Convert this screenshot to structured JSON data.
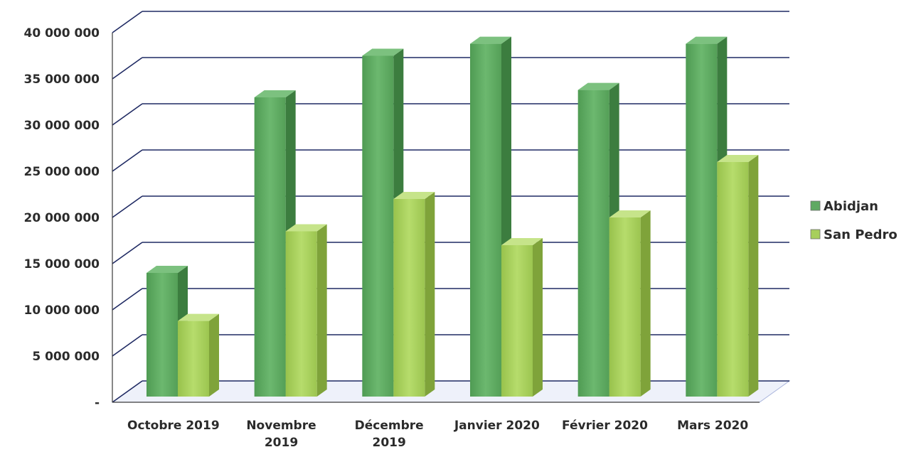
{
  "chart_data": {
    "type": "bar",
    "title": "",
    "xlabel": "",
    "ylabel": "",
    "categories": [
      [
        "Octobre 2019"
      ],
      [
        "Novembre",
        "2019"
      ],
      [
        "Décembre",
        "2019"
      ],
      [
        "Janvier 2020"
      ],
      [
        "Février 2020"
      ],
      [
        "Mars 2020"
      ]
    ],
    "series": [
      {
        "name": "Abidjan",
        "values": [
          14000000,
          33000000,
          37500000,
          38800000,
          33800000,
          38800000
        ],
        "color": "#5fa962"
      },
      {
        "name": "San Pedro",
        "values": [
          8800000,
          18500000,
          22000000,
          17000000,
          20000000,
          26000000
        ],
        "color": "#a7cf5c"
      }
    ],
    "ylim": [
      0,
      40000000
    ],
    "yticks": [
      "-",
      "5 000 000",
      "10 000 000",
      "15 000 000",
      "20 000 000",
      "25 000 000",
      "30 000 000",
      "35 000 000",
      "40 000 000"
    ],
    "ytick_values": [
      0,
      5000000,
      10000000,
      15000000,
      20000000,
      25000000,
      30000000,
      35000000,
      40000000
    ],
    "grid": true,
    "legend": "right",
    "style": "3d-column"
  }
}
